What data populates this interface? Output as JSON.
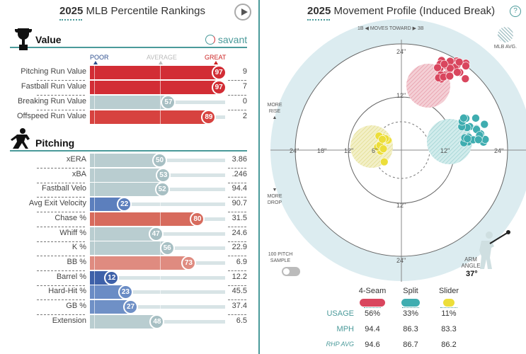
{
  "left": {
    "title_year": "2025",
    "title_rest": " MLB Percentile Rankings",
    "value_section": "Value",
    "savant": "savant",
    "scale": {
      "poor": "POOR",
      "average": "AVERAGE",
      "great": "GREAT"
    },
    "value_rows": [
      {
        "label": "Pitching Run Value",
        "pct": 97,
        "value": "9",
        "color": "#d22d35"
      },
      {
        "label": "Fastball Run Value",
        "pct": 97,
        "value": "7",
        "color": "#d22d35"
      },
      {
        "label": "Breaking Run Value",
        "pct": 57,
        "value": "0",
        "color": "#b9cdd0"
      },
      {
        "label": "Offspeed Run Value",
        "pct": 89,
        "value": "2",
        "color": "#d7423f"
      }
    ],
    "pitching_section": "Pitching",
    "pitching_rows": [
      {
        "label": "xERA",
        "pct": 50,
        "value": "3.86",
        "color": "#b9cdd0"
      },
      {
        "label": "xBA",
        "pct": 53,
        "value": ".246",
        "color": "#b9cdd0"
      },
      {
        "label": "Fastball Velo",
        "pct": 52,
        "value": "94.4",
        "color": "#b9cdd0"
      },
      {
        "label": "Avg Exit Velocity",
        "pct": 22,
        "value": "90.7",
        "color": "#5c7fbd"
      },
      {
        "label": "Chase %",
        "pct": 80,
        "value": "31.5",
        "color": "#d76b5d"
      },
      {
        "label": "Whiff %",
        "pct": 47,
        "value": "24.6",
        "color": "#b9cdd0"
      },
      {
        "label": "K %",
        "pct": 56,
        "value": "22.9",
        "color": "#b9cdd0"
      },
      {
        "label": "BB %",
        "pct": 73,
        "value": "6.9",
        "color": "#df8b80"
      },
      {
        "label": "Barrel %",
        "pct": 12,
        "value": "12.2",
        "color": "#3e61a9"
      },
      {
        "label": "Hard-Hit %",
        "pct": 23,
        "value": "45.5",
        "color": "#6a8cc5"
      },
      {
        "label": "GB %",
        "pct": 27,
        "value": "37.4",
        "color": "#6f90c6"
      },
      {
        "label": "Extension",
        "pct": 48,
        "value": "6.5",
        "color": "#b9cdd0"
      }
    ]
  },
  "right": {
    "title_year": "2025",
    "title_rest": " Movement Profile (Induced Break)",
    "help": "?",
    "toward": "1B ◀  MOVES TOWARD  ▶ 3B",
    "mlb_avg": "MLB AVG.",
    "more_rise": "MORE RISE",
    "more_drop": "MORE DROP",
    "rings": {
      "r24": "24\"",
      "r18": "18\"",
      "r12": "12\"",
      "r6": "6\""
    },
    "sample": "100 PITCH SAMPLE",
    "arm_angle_label": "ARM ANGLE",
    "arm_angle": "37°",
    "pitches": [
      {
        "name": "4-Seam",
        "usage": "56%",
        "mph": "94.4",
        "rhp_avg": "94.6",
        "color": "#d9465e"
      },
      {
        "name": "Split",
        "usage": "33%",
        "mph": "86.3",
        "rhp_avg": "86.7",
        "color": "#3fadb0"
      },
      {
        "name": "Slider",
        "usage": "11%",
        "mph": "83.3",
        "rhp_avg": "86.2",
        "color": "#ecde3a"
      }
    ],
    "row_labels": {
      "usage": "USAGE",
      "mph": "MPH",
      "rhp": "RHP AVG"
    }
  }
}
